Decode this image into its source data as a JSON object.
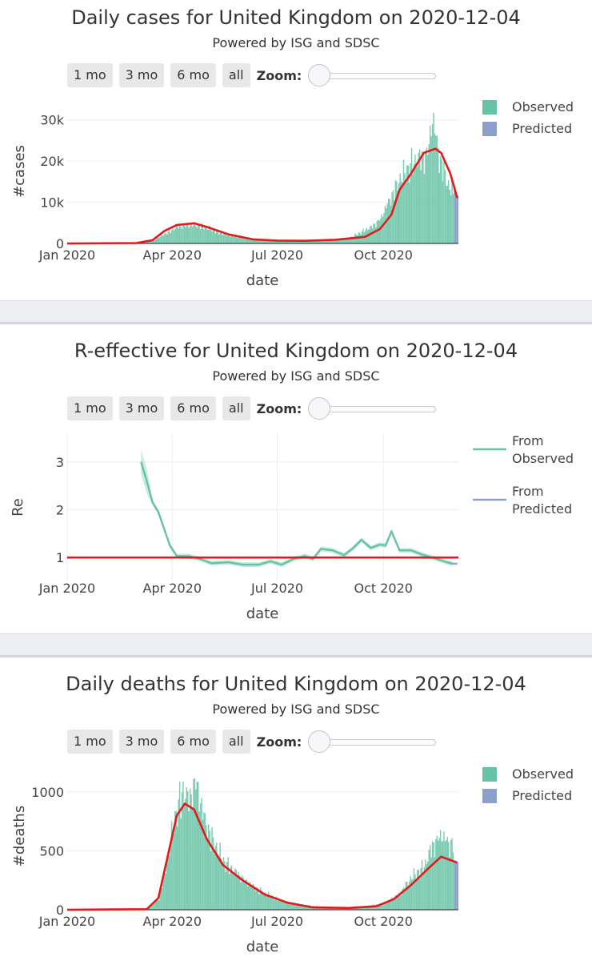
{
  "controls": {
    "buttons": [
      "1 mo",
      "3 mo",
      "6 mo",
      "all"
    ],
    "zoom_label": "Zoom:"
  },
  "colors": {
    "observed": "#66c2a5",
    "predicted": "#8da0cb",
    "fit_line": "#e31a1c",
    "grid": "#eeeeee"
  },
  "charts": [
    {
      "id": "cases",
      "title": "Daily cases for United Kingdom on 2020-12-04",
      "subtitle": "Powered by ISG and SDSC",
      "chart_data": {
        "type": "bar",
        "title": "Daily cases for United Kingdom on 2020-12-04",
        "xlabel": "date",
        "ylabel": "#cases",
        "x_ticks": [
          "Jan 2020",
          "Apr 2020",
          "Jul 2020",
          "Oct 2020"
        ],
        "y_ticks": [
          "0",
          "10k",
          "20k",
          "30k"
        ],
        "ylim": [
          0,
          35000
        ],
        "legend": [
          "Observed",
          "Predicted"
        ],
        "legend_position": "right",
        "observed_series": {
          "name": "Observed",
          "points": [
            [
              "2020-03-01",
              30
            ],
            [
              "2020-03-15",
              800
            ],
            [
              "2020-03-25",
              2500
            ],
            [
              "2020-04-05",
              4300
            ],
            [
              "2020-04-15",
              4800
            ],
            [
              "2020-04-25",
              4700
            ],
            [
              "2020-05-05",
              3600
            ],
            [
              "2020-05-15",
              2500
            ],
            [
              "2020-05-25",
              1800
            ],
            [
              "2020-06-10",
              1100
            ],
            [
              "2020-07-01",
              700
            ],
            [
              "2020-07-20",
              650
            ],
            [
              "2020-08-10",
              900
            ],
            [
              "2020-09-01",
              1400
            ],
            [
              "2020-09-10",
              2800
            ],
            [
              "2020-09-20",
              4300
            ],
            [
              "2020-09-28",
              6500
            ],
            [
              "2020-10-05",
              11000
            ],
            [
              "2020-10-15",
              17000
            ],
            [
              "2020-10-25",
              21000
            ],
            [
              "2020-11-02",
              22500
            ],
            [
              "2020-11-08",
              24000
            ],
            [
              "2020-11-12",
              33500
            ],
            [
              "2020-11-18",
              23000
            ],
            [
              "2020-11-25",
              16000
            ],
            [
              "2020-11-30",
              13000
            ]
          ]
        },
        "predicted_series": {
          "name": "Predicted",
          "points": [
            [
              "2020-12-01",
              13000
            ],
            [
              "2020-12-04",
              11500
            ]
          ]
        },
        "fit_line": {
          "points": [
            [
              "2020-01-01",
              0
            ],
            [
              "2020-03-01",
              100
            ],
            [
              "2020-03-15",
              800
            ],
            [
              "2020-03-25",
              3000
            ],
            [
              "2020-04-05",
              4500
            ],
            [
              "2020-04-20",
              4900
            ],
            [
              "2020-05-01",
              4000
            ],
            [
              "2020-05-20",
              2200
            ],
            [
              "2020-06-10",
              1000
            ],
            [
              "2020-07-01",
              700
            ],
            [
              "2020-07-25",
              650
            ],
            [
              "2020-08-20",
              900
            ],
            [
              "2020-09-15",
              1600
            ],
            [
              "2020-09-28",
              3500
            ],
            [
              "2020-10-08",
              7000
            ],
            [
              "2020-10-15",
              13000
            ],
            [
              "2020-10-25",
              17000
            ],
            [
              "2020-11-05",
              22000
            ],
            [
              "2020-11-15",
              23000
            ],
            [
              "2020-11-20",
              22000
            ],
            [
              "2020-11-28",
              17000
            ],
            [
              "2020-12-04",
              11000
            ]
          ]
        }
      }
    },
    {
      "id": "re",
      "title": "R-effective for United Kingdom on 2020-12-04",
      "subtitle": "Powered by ISG and SDSC",
      "chart_data": {
        "type": "line",
        "title": "R-effective for United Kingdom on 2020-12-04",
        "xlabel": "date",
        "ylabel": "Re",
        "x_ticks": [
          "Jan 2020",
          "Apr 2020",
          "Jul 2020",
          "Oct 2020"
        ],
        "y_ticks": [
          "1",
          "2",
          "3"
        ],
        "ylim": [
          0.5,
          3.6
        ],
        "legend": [
          "From Observed",
          "From Predicted"
        ],
        "legend_position": "right",
        "series": [
          {
            "name": "From Observed",
            "points": [
              [
                "2020-03-05",
                3.0
              ],
              [
                "2020-03-10",
                2.6
              ],
              [
                "2020-03-15",
                2.15
              ],
              [
                "2020-03-20",
                1.95
              ],
              [
                "2020-03-25",
                1.6
              ],
              [
                "2020-03-30",
                1.25
              ],
              [
                "2020-04-05",
                1.03
              ],
              [
                "2020-04-15",
                1.03
              ],
              [
                "2020-04-25",
                0.97
              ],
              [
                "2020-05-05",
                0.88
              ],
              [
                "2020-05-20",
                0.9
              ],
              [
                "2020-06-01",
                0.85
              ],
              [
                "2020-06-15",
                0.85
              ],
              [
                "2020-06-25",
                0.92
              ],
              [
                "2020-07-05",
                0.85
              ],
              [
                "2020-07-15",
                0.97
              ],
              [
                "2020-07-25",
                1.03
              ],
              [
                "2020-08-01",
                0.97
              ],
              [
                "2020-08-08",
                1.18
              ],
              [
                "2020-08-18",
                1.15
              ],
              [
                "2020-08-28",
                1.05
              ],
              [
                "2020-09-05",
                1.2
              ],
              [
                "2020-09-12",
                1.37
              ],
              [
                "2020-09-20",
                1.2
              ],
              [
                "2020-09-28",
                1.27
              ],
              [
                "2020-10-03",
                1.25
              ],
              [
                "2020-10-08",
                1.55
              ],
              [
                "2020-10-15",
                1.15
              ],
              [
                "2020-10-25",
                1.15
              ],
              [
                "2020-11-05",
                1.05
              ],
              [
                "2020-11-15",
                0.98
              ],
              [
                "2020-11-25",
                0.9
              ],
              [
                "2020-11-30",
                0.87
              ]
            ]
          },
          {
            "name": "From Predicted",
            "points": [
              [
                "2020-11-30",
                0.87
              ],
              [
                "2020-12-04",
                0.87
              ]
            ]
          }
        ],
        "reference_line": 1.0
      }
    },
    {
      "id": "deaths",
      "title": "Daily deaths for United Kingdom on 2020-12-04",
      "subtitle": "Powered by ISG and SDSC",
      "chart_data": {
        "type": "bar",
        "title": "Daily deaths for United Kingdom on 2020-12-04",
        "xlabel": "date",
        "ylabel": "#deaths",
        "x_ticks": [
          "Jan 2020",
          "Apr 2020",
          "Jul 2020",
          "Oct 2020"
        ],
        "y_ticks": [
          "0",
          "500",
          "1000"
        ],
        "ylim": [
          0,
          1250
        ],
        "legend": [
          "Observed",
          "Predicted"
        ],
        "legend_position": "right",
        "observed_series": {
          "name": "Observed",
          "points": [
            [
              "2020-03-10",
              5
            ],
            [
              "2020-03-20",
              100
            ],
            [
              "2020-03-28",
              500
            ],
            [
              "2020-04-04",
              900
            ],
            [
              "2020-04-10",
              1100
            ],
            [
              "2020-04-15",
              1000
            ],
            [
              "2020-04-21",
              1200
            ],
            [
              "2020-04-28",
              850
            ],
            [
              "2020-05-05",
              650
            ],
            [
              "2020-05-15",
              450
            ],
            [
              "2020-05-25",
              350
            ],
            [
              "2020-06-05",
              250
            ],
            [
              "2020-06-20",
              150
            ],
            [
              "2020-07-05",
              80
            ],
            [
              "2020-07-25",
              40
            ],
            [
              "2020-08-20",
              15
            ],
            [
              "2020-09-15",
              25
            ],
            [
              "2020-10-01",
              60
            ],
            [
              "2020-10-15",
              150
            ],
            [
              "2020-10-25",
              300
            ],
            [
              "2020-11-05",
              400
            ],
            [
              "2020-11-12",
              590
            ],
            [
              "2020-11-20",
              690
            ],
            [
              "2020-11-27",
              600
            ],
            [
              "2020-11-30",
              640
            ]
          ]
        },
        "predicted_series": {
          "name": "Predicted",
          "points": [
            [
              "2020-12-01",
              420
            ],
            [
              "2020-12-04",
              400
            ]
          ]
        },
        "fit_line": {
          "points": [
            [
              "2020-01-01",
              0
            ],
            [
              "2020-03-10",
              5
            ],
            [
              "2020-03-20",
              100
            ],
            [
              "2020-03-28",
              450
            ],
            [
              "2020-04-05",
              800
            ],
            [
              "2020-04-12",
              900
            ],
            [
              "2020-04-20",
              850
            ],
            [
              "2020-05-01",
              600
            ],
            [
              "2020-05-15",
              380
            ],
            [
              "2020-06-01",
              250
            ],
            [
              "2020-06-20",
              130
            ],
            [
              "2020-07-10",
              60
            ],
            [
              "2020-08-01",
              20
            ],
            [
              "2020-09-01",
              15
            ],
            [
              "2020-09-25",
              30
            ],
            [
              "2020-10-10",
              90
            ],
            [
              "2020-10-25",
              210
            ],
            [
              "2020-11-10",
              360
            ],
            [
              "2020-11-20",
              450
            ],
            [
              "2020-12-04",
              400
            ]
          ]
        }
      }
    }
  ]
}
